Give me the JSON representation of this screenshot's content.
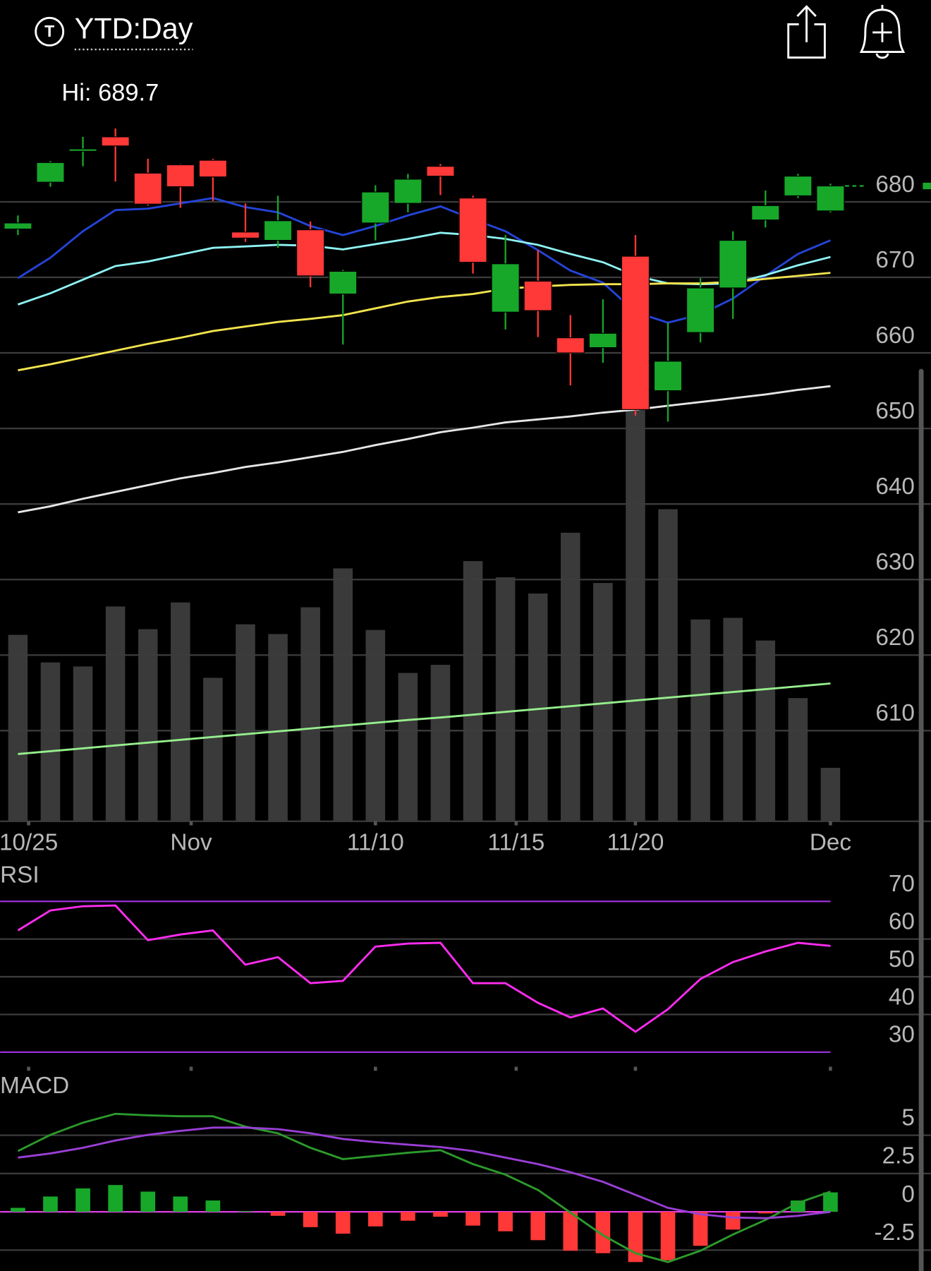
{
  "header": {
    "symbol_icon": "T",
    "timeframe": "YTD:Day"
  },
  "chart_data": [
    {
      "type": "candlestick",
      "annotation": "Hi: 689.7",
      "ylim": [
        598,
        702
      ],
      "yticks": [
        610,
        620,
        630,
        640,
        650,
        660,
        670,
        680
      ],
      "xticks": [
        {
          "value": 0.33,
          "label": "10/25"
        },
        {
          "value": 5.33,
          "label": "Nov"
        },
        {
          "value": 11,
          "label": "11/10"
        },
        {
          "value": 15.33,
          "label": "11/15"
        },
        {
          "value": 19,
          "label": "11/20"
        },
        {
          "value": 25,
          "label": "Dec"
        }
      ],
      "grid": true,
      "up_color": "#17a82a",
      "down_color": "#ff3838",
      "open": [
        676.4,
        682.6,
        686.7,
        688.6,
        683.8,
        684.9,
        685.5,
        676.0,
        674.9,
        676.3,
        667.8,
        677.2,
        679.8,
        684.7,
        680.5,
        665.4,
        669.5,
        662.0,
        660.7,
        672.8,
        655.0,
        662.7,
        668.6,
        677.6,
        680.8,
        678.8
      ],
      "high": [
        678.2,
        685.4,
        688.6,
        689.7,
        685.7,
        685.0,
        685.7,
        679.8,
        680.8,
        677.4,
        671.0,
        682.2,
        683.7,
        685.0,
        680.8,
        675.6,
        673.6,
        665.0,
        667.1,
        675.6,
        664.0,
        669.9,
        676.1,
        681.5,
        683.7,
        682.4
      ],
      "low": [
        675.6,
        682.0,
        684.7,
        682.7,
        679.5,
        679.2,
        680.1,
        674.7,
        673.9,
        668.7,
        661.1,
        674.9,
        678.6,
        680.9,
        670.5,
        663.1,
        662.1,
        655.7,
        658.7,
        651.7,
        650.9,
        661.4,
        664.5,
        676.6,
        680.5,
        678.6
      ],
      "close": [
        677.2,
        685.2,
        687.0,
        687.4,
        679.7,
        682.0,
        683.3,
        675.2,
        677.5,
        670.2,
        670.8,
        681.3,
        683.0,
        683.4,
        672.0,
        671.8,
        665.6,
        660.0,
        662.6,
        652.5,
        658.9,
        668.6,
        674.9,
        679.5,
        683.4,
        682.1
      ],
      "series": [
        {
          "color": "#2444d8",
          "values": [
            669.9,
            672.6,
            676.1,
            678.9,
            679.1,
            679.8,
            680.5,
            679.3,
            678.6,
            676.8,
            675.6,
            676.8,
            678.2,
            679.4,
            677.7,
            676.1,
            673.6,
            670.9,
            669.3,
            665.4,
            664.0,
            665.1,
            667.2,
            670.2,
            673.1,
            674.9
          ]
        },
        {
          "color": "#8ef2f2",
          "values": [
            666.4,
            667.9,
            669.7,
            671.5,
            672.1,
            673.0,
            673.9,
            674.1,
            674.3,
            674.2,
            673.7,
            674.4,
            675.1,
            675.9,
            675.6,
            675.1,
            674.3,
            673.1,
            672.0,
            670.2,
            669.2,
            669.1,
            669.2,
            670.3,
            671.6,
            672.7
          ]
        },
        {
          "color": "#f2e44e",
          "values": [
            657.7,
            658.5,
            659.4,
            660.3,
            661.2,
            662.0,
            662.9,
            663.5,
            664.1,
            664.5,
            665.0,
            665.9,
            666.8,
            667.4,
            667.8,
            668.5,
            668.8,
            669.0,
            669.1,
            669.1,
            669.2,
            669.2,
            669.4,
            669.8,
            670.2,
            670.6
          ]
        },
        {
          "color": "#e6e6e6",
          "values": [
            638.9,
            639.7,
            640.7,
            641.6,
            642.5,
            643.4,
            644.1,
            644.9,
            645.5,
            646.2,
            646.9,
            647.8,
            648.6,
            649.5,
            650.1,
            650.8,
            651.2,
            651.6,
            652.1,
            652.5,
            653.0,
            653.5,
            654.0,
            654.5,
            655.1,
            655.6
          ]
        }
      ],
      "volume": {
        "color": "#3a3a3a",
        "ylim": [
          0,
          1100
        ],
        "values": [
          460,
          392,
          382,
          530,
          474,
          540,
          354,
          486,
          462,
          528,
          624,
          472,
          366,
          386,
          642,
          602,
          562,
          712,
          588,
          1016,
          770,
          498,
          502,
          446,
          304,
          132
        ],
        "ma": {
          "color": "#96ee8c",
          "values": [
            166,
            173,
            180,
            187,
            194,
            201,
            208,
            215,
            222,
            229,
            236,
            243,
            250,
            256,
            263,
            270,
            277,
            284,
            291,
            298,
            305,
            312,
            319,
            326,
            333,
            340
          ]
        }
      }
    },
    {
      "type": "line",
      "title": "RSI",
      "ylim": [
        26,
        78
      ],
      "yticks": [
        30,
        40,
        50,
        60,
        70
      ],
      "grid": true,
      "extreme_line_color": "#9b30d9",
      "series": [
        {
          "color": "#ff2cf0",
          "values": [
            62.3,
            67.6,
            68.7,
            68.9,
            59.7,
            61.2,
            62.3,
            53.2,
            55.2,
            48.3,
            48.9,
            58.0,
            58.8,
            59.0,
            48.3,
            48.3,
            43.1,
            39.2,
            41.6,
            35.4,
            41.4,
            49.4,
            53.9,
            56.7,
            59.0,
            58.2
          ]
        }
      ]
    },
    {
      "type": "macd",
      "title": "MACD",
      "ylim": [
        -3.8,
        8.5
      ],
      "yticks": [
        -2.5,
        0,
        2.5,
        5
      ],
      "grid": true,
      "zero_line_color": "#e33ee6",
      "up_color": "#17a82a",
      "down_color": "#ff3838",
      "histogram": [
        0.26,
        1.0,
        1.53,
        1.75,
        1.32,
        1.0,
        0.74,
        0.05,
        -0.26,
        -1.0,
        -1.43,
        -0.95,
        -0.58,
        -0.32,
        -0.9,
        -1.27,
        -1.85,
        -2.54,
        -2.7,
        -3.28,
        -3.17,
        -2.22,
        -1.16,
        -0.1,
        0.74,
        1.27
      ],
      "series": [
        {
          "color": "#2c9a2c",
          "values": [
            3.97,
            5.03,
            5.82,
            6.4,
            6.3,
            6.24,
            6.24,
            5.56,
            5.13,
            4.18,
            3.44,
            3.65,
            3.86,
            4.02,
            3.12,
            2.43,
            1.43,
            -0.05,
            -1.53,
            -2.7,
            -3.28,
            -2.54,
            -1.48,
            -0.53,
            0.58,
            1.32
          ]
        },
        {
          "color": "#9a3fd6",
          "values": [
            3.54,
            3.81,
            4.18,
            4.66,
            5.03,
            5.29,
            5.5,
            5.5,
            5.4,
            5.13,
            4.76,
            4.55,
            4.39,
            4.23,
            3.97,
            3.54,
            3.12,
            2.59,
            1.96,
            1.11,
            0.26,
            -0.16,
            -0.37,
            -0.42,
            -0.26,
            0
          ]
        }
      ]
    }
  ]
}
